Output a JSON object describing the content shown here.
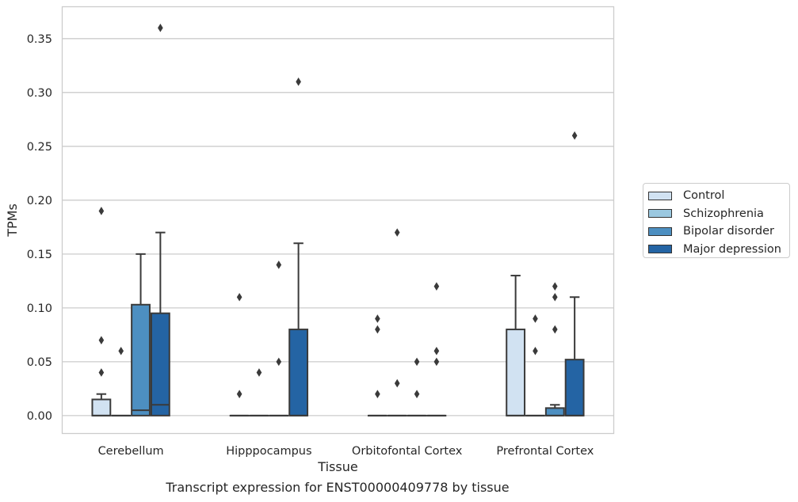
{
  "chart_data": {
    "type": "box",
    "title": "Transcript expression for ENST00000409778 by tissue",
    "xlabel": "Tissue",
    "ylabel": "TPMs",
    "ylim": [
      -0.017,
      0.38
    ],
    "yticks": [
      0.0,
      0.05,
      0.1,
      0.15,
      0.2,
      0.25,
      0.3,
      0.35
    ],
    "ytick_labels": [
      "0.00",
      "0.05",
      "0.10",
      "0.15",
      "0.20",
      "0.25",
      "0.30",
      "0.35"
    ],
    "grid": "horizontal",
    "legend_position": "right",
    "categories": [
      "Cerebellum",
      "Hipppocampus",
      "Orbitofontal Cortex",
      "Prefrontal Cortex"
    ],
    "series": [
      {
        "name": "Control",
        "color": "#d1e2f2",
        "boxes": [
          {
            "q1": 0,
            "median": 0,
            "q3": 0.015,
            "whisker_low": 0,
            "whisker_high": 0.02,
            "outliers": [
              0.04,
              0.07,
              0.19
            ]
          },
          {
            "q1": 0,
            "median": 0,
            "q3": 0,
            "whisker_low": 0,
            "whisker_high": 0,
            "outliers": [
              0.02,
              0.11
            ]
          },
          {
            "q1": 0,
            "median": 0,
            "q3": 0,
            "whisker_low": 0,
            "whisker_high": 0,
            "outliers": [
              0.02,
              0.08,
              0.09
            ]
          },
          {
            "q1": 0,
            "median": 0,
            "q3": 0.08,
            "whisker_low": 0,
            "whisker_high": 0.13,
            "outliers": []
          }
        ]
      },
      {
        "name": "Schizophrenia",
        "color": "#9ac8e0",
        "boxes": [
          {
            "q1": 0,
            "median": 0,
            "q3": 0,
            "whisker_low": 0,
            "whisker_high": 0,
            "outliers": [
              0.06
            ]
          },
          {
            "q1": 0,
            "median": 0,
            "q3": 0,
            "whisker_low": 0,
            "whisker_high": 0,
            "outliers": [
              0.04
            ]
          },
          {
            "q1": 0,
            "median": 0,
            "q3": 0,
            "whisker_low": 0,
            "whisker_high": 0,
            "outliers": [
              0.03,
              0.17
            ]
          },
          {
            "q1": 0,
            "median": 0,
            "q3": 0,
            "whisker_low": 0,
            "whisker_high": 0,
            "outliers": [
              0.06,
              0.09
            ]
          }
        ]
      },
      {
        "name": "Bipolar disorder",
        "color": "#4d8fc1",
        "boxes": [
          {
            "q1": 0,
            "median": 0.005,
            "q3": 0.103,
            "whisker_low": 0,
            "whisker_high": 0.15,
            "outliers": []
          },
          {
            "q1": 0,
            "median": 0,
            "q3": 0,
            "whisker_low": 0,
            "whisker_high": 0,
            "outliers": [
              0.05,
              0.14
            ]
          },
          {
            "q1": 0,
            "median": 0,
            "q3": 0,
            "whisker_low": 0,
            "whisker_high": 0,
            "outliers": [
              0.02,
              0.05
            ]
          },
          {
            "q1": 0,
            "median": 0,
            "q3": 0.007,
            "whisker_low": 0,
            "whisker_high": 0.01,
            "outliers": [
              0.08,
              0.11,
              0.12
            ]
          }
        ]
      },
      {
        "name": "Major depression",
        "color": "#2464a4",
        "boxes": [
          {
            "q1": 0,
            "median": 0.01,
            "q3": 0.095,
            "whisker_low": 0,
            "whisker_high": 0.17,
            "outliers": [
              0.36
            ]
          },
          {
            "q1": 0,
            "median": 0,
            "q3": 0.08,
            "whisker_low": 0,
            "whisker_high": 0.16,
            "outliers": [
              0.31
            ]
          },
          {
            "q1": 0,
            "median": 0,
            "q3": 0,
            "whisker_low": 0,
            "whisker_high": 0,
            "outliers": [
              0.05,
              0.06,
              0.12
            ]
          },
          {
            "q1": 0,
            "median": 0,
            "q3": 0.052,
            "whisker_low": 0,
            "whisker_high": 0.11,
            "outliers": [
              0.26
            ]
          }
        ]
      }
    ]
  }
}
